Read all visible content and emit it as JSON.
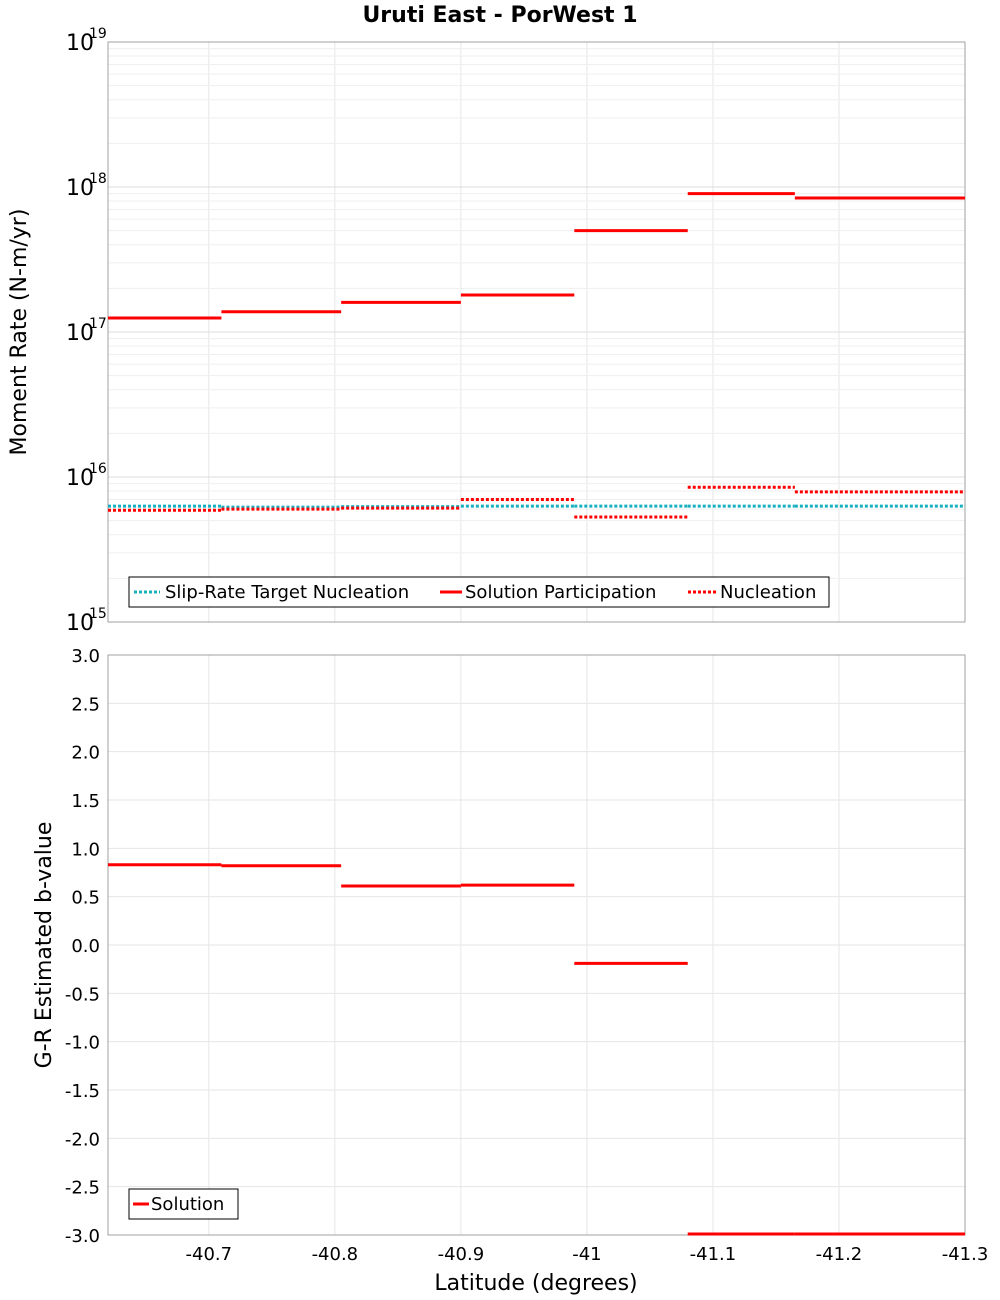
{
  "title": "Uruti East - PorWest 1",
  "colors": {
    "solution": "#ff0000",
    "target": "#17b0c0",
    "grid": "#e6e6e6",
    "frame": "#a0a0a0"
  },
  "chart_data": [
    {
      "type": "line",
      "panel": "top",
      "ylabel": "Moment Rate (N-m/yr)",
      "yscale": "log",
      "ylim": [
        1000000000000000.0,
        1e+19
      ],
      "yticks": [
        {
          "base": "10",
          "exp": "19",
          "value": 1e+19
        },
        {
          "base": "10",
          "exp": "18",
          "value": 1e+18
        },
        {
          "base": "10",
          "exp": "17",
          "value": 1e+17
        },
        {
          "base": "10",
          "exp": "16",
          "value": 1e+16
        },
        {
          "base": "10",
          "exp": "15",
          "value": 1000000000000000.0
        }
      ],
      "legend_position": "bottom-left",
      "series": [
        {
          "name": "Slip-Rate Target Nucleation",
          "style": "dotted",
          "color": "#17b0c0",
          "segments": [
            {
              "x": [
                -40.62,
                -40.71
              ],
              "y": 6300000000000000.0
            },
            {
              "x": [
                -40.71,
                -40.805
              ],
              "y": 6200000000000000.0
            },
            {
              "x": [
                -40.805,
                -40.9
              ],
              "y": 6250000000000000.0
            },
            {
              "x": [
                -40.9,
                -40.99
              ],
              "y": 6300000000000000.0
            },
            {
              "x": [
                -40.99,
                -41.08
              ],
              "y": 6300000000000000.0
            },
            {
              "x": [
                -41.08,
                -41.165
              ],
              "y": 6300000000000000.0
            },
            {
              "x": [
                -41.165,
                -41.3
              ],
              "y": 6300000000000000.0
            }
          ]
        },
        {
          "name": "Solution Participation",
          "style": "solid",
          "color": "#ff0000",
          "segments": [
            {
              "x": [
                -40.62,
                -40.71
              ],
              "y": 1.25e+17
            },
            {
              "x": [
                -40.71,
                -40.805
              ],
              "y": 1.38e+17
            },
            {
              "x": [
                -40.805,
                -40.9
              ],
              "y": 1.6e+17
            },
            {
              "x": [
                -40.9,
                -40.99
              ],
              "y": 1.8e+17
            },
            {
              "x": [
                -40.99,
                -41.08
              ],
              "y": 5e+17
            },
            {
              "x": [
                -41.08,
                -41.165
              ],
              "y": 9e+17
            },
            {
              "x": [
                -41.165,
                -41.3
              ],
              "y": 8.4e+17
            }
          ]
        },
        {
          "name": "Nucleation",
          "style": "dotted",
          "color": "#ff0000",
          "segments": [
            {
              "x": [
                -40.62,
                -40.71
              ],
              "y": 5900000000000000.0
            },
            {
              "x": [
                -40.71,
                -40.805
              ],
              "y": 6000000000000000.0
            },
            {
              "x": [
                -40.805,
                -40.9
              ],
              "y": 6100000000000000.0
            },
            {
              "x": [
                -40.9,
                -40.99
              ],
              "y": 7000000000000000.0
            },
            {
              "x": [
                -40.99,
                -41.08
              ],
              "y": 5300000000000000.0
            },
            {
              "x": [
                -41.08,
                -41.165
              ],
              "y": 8500000000000000.0
            },
            {
              "x": [
                -41.165,
                -41.3
              ],
              "y": 7900000000000000.0
            }
          ]
        }
      ]
    },
    {
      "type": "line",
      "panel": "bottom",
      "ylabel": "G-R Estimated b-value",
      "xlabel": "Latitude (degrees)",
      "ylim": [
        -3.0,
        3.0
      ],
      "xlim": [
        -40.62,
        -41.3
      ],
      "yticks": [
        "3.0",
        "2.5",
        "2.0",
        "1.5",
        "1.0",
        "0.5",
        "0.0",
        "-0.5",
        "-1.0",
        "-1.5",
        "-2.0",
        "-2.5",
        "-3.0"
      ],
      "xticks": [
        {
          "label": "-40.7",
          "value": -40.7
        },
        {
          "label": "-40.8",
          "value": -40.8
        },
        {
          "label": "-40.9",
          "value": -40.9
        },
        {
          "label": "-41",
          "value": -41.0
        },
        {
          "label": "-41.1",
          "value": -41.1
        },
        {
          "label": "-41.2",
          "value": -41.2
        },
        {
          "label": "-41.3",
          "value": -41.3
        }
      ],
      "legend_position": "bottom-left",
      "series": [
        {
          "name": "Solution",
          "style": "solid",
          "color": "#ff0000",
          "segments": [
            {
              "x": [
                -40.62,
                -40.71
              ],
              "y": 0.83
            },
            {
              "x": [
                -40.71,
                -40.805
              ],
              "y": 0.82
            },
            {
              "x": [
                -40.805,
                -40.9
              ],
              "y": 0.61
            },
            {
              "x": [
                -40.9,
                -40.99
              ],
              "y": 0.62
            },
            {
              "x": [
                -40.99,
                -41.08
              ],
              "y": -0.19
            },
            {
              "x": [
                -41.08,
                -41.165
              ],
              "y": -3.0
            },
            {
              "x": [
                -41.165,
                -41.3
              ],
              "y": -3.0
            }
          ]
        }
      ]
    }
  ]
}
